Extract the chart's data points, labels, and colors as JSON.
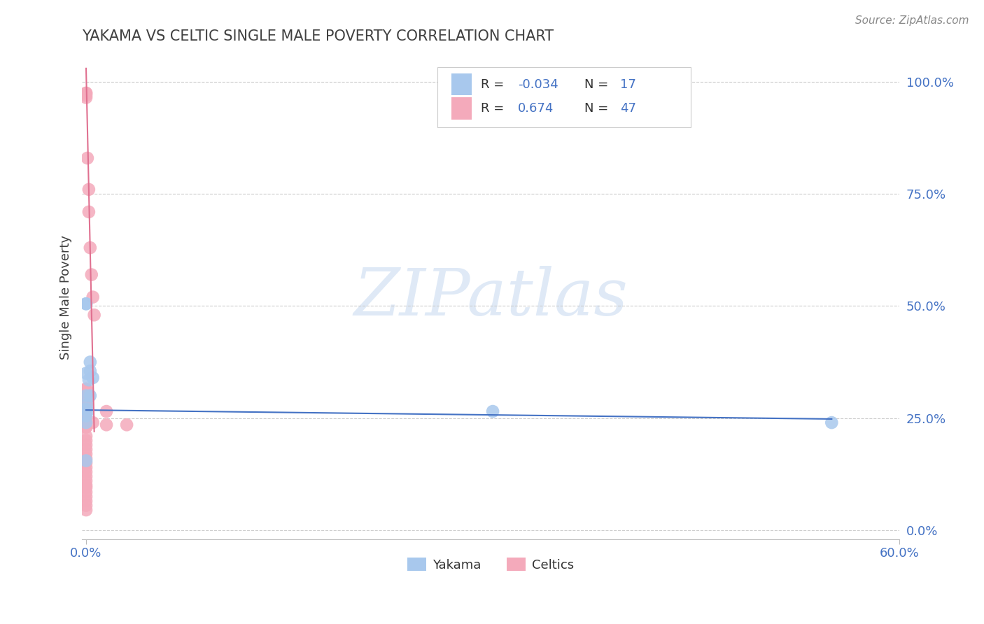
{
  "title": "YAKAMA VS CELTIC SINGLE MALE POVERTY CORRELATION CHART",
  "source_text": "Source: ZipAtlas.com",
  "ylabel": "Single Male Poverty",
  "watermark": "ZIPatlas",
  "yakama_R": -0.034,
  "yakama_N": 17,
  "celtics_R": 0.674,
  "celtics_N": 47,
  "yakama_color": "#A8C8ED",
  "celtics_color": "#F4AABB",
  "yakama_line_color": "#4472C4",
  "celtics_line_color": "#E07090",
  "title_color": "#404040",
  "tick_color": "#4472C4",
  "grid_color": "#CCCCCC",
  "background_color": "#FFFFFF",
  "xlim": [
    -0.003,
    0.6
  ],
  "ylim": [
    -0.02,
    1.06
  ],
  "yticks": [
    0.0,
    0.25,
    0.5,
    0.75,
    1.0
  ],
  "yakama_x": [
    0.0,
    0.0,
    0.0,
    0.0,
    0.0,
    0.001,
    0.001,
    0.002,
    0.003,
    0.003,
    0.0,
    0.0,
    0.003,
    0.3,
    0.55,
    0.005,
    0.0
  ],
  "yakama_y": [
    0.505,
    0.505,
    0.3,
    0.27,
    0.35,
    0.28,
    0.265,
    0.335,
    0.355,
    0.375,
    0.255,
    0.24,
    0.3,
    0.265,
    0.24,
    0.34,
    0.155
  ],
  "celtics_x": [
    0.0,
    0.0,
    0.0,
    0.0,
    0.001,
    0.002,
    0.002,
    0.003,
    0.004,
    0.005,
    0.005,
    0.006,
    0.0,
    0.0,
    0.0,
    0.0,
    0.0,
    0.0,
    0.0,
    0.0,
    0.0,
    0.0,
    0.0,
    0.0,
    0.0,
    0.0,
    0.0,
    0.0,
    0.0,
    0.0,
    0.0,
    0.0,
    0.0,
    0.0,
    0.0,
    0.0,
    0.0,
    0.0,
    0.0,
    0.0,
    0.015,
    0.015,
    0.03,
    0.0,
    0.0,
    0.0,
    0.0
  ],
  "celtics_y": [
    0.975,
    0.975,
    0.97,
    0.965,
    0.83,
    0.76,
    0.71,
    0.63,
    0.57,
    0.52,
    0.24,
    0.48,
    0.23,
    0.23,
    0.24,
    0.21,
    0.2,
    0.19,
    0.18,
    0.17,
    0.16,
    0.15,
    0.14,
    0.13,
    0.12,
    0.11,
    0.1,
    0.095,
    0.085,
    0.075,
    0.065,
    0.055,
    0.045,
    0.25,
    0.26,
    0.27,
    0.28,
    0.29,
    0.3,
    0.305,
    0.265,
    0.235,
    0.235,
    0.315,
    0.315,
    0.31,
    0.31
  ],
  "celtics_line_x": [
    0.0,
    0.006
  ],
  "celtics_line_y": [
    1.03,
    0.22
  ],
  "yakama_line_x": [
    0.0,
    0.55
  ],
  "yakama_line_y": [
    0.268,
    0.248
  ]
}
